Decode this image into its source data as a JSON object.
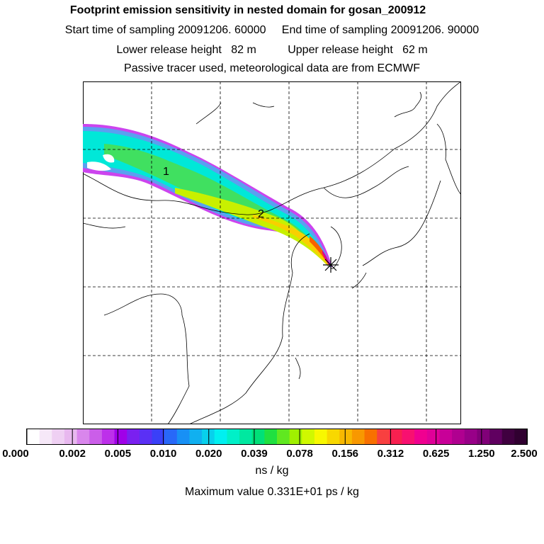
{
  "titles": {
    "line1": "Footprint emission sensitivity in nested domain for gosan_200912",
    "line2": "Start time of sampling 20091206. 60000     End time of sampling 20091206. 90000",
    "line3": "Lower release height   82 m          Upper release height   62 m",
    "line4": "Passive tracer used, meteorological data are from ECMWF"
  },
  "map": {
    "labels": [
      "2",
      "1"
    ],
    "release_marker": "star-marker"
  },
  "colorbar": {
    "colors": [
      "#ffffff",
      "#f6e8f8",
      "#efd0f3",
      "#e8b8ef",
      "#d986ec",
      "#cb5ee9",
      "#bd30ea",
      "#a000e8",
      "#7a20f0",
      "#5a30f5",
      "#3a40f8",
      "#2868f8",
      "#1890f5",
      "#10b0f0",
      "#08d0ec",
      "#00f0f0",
      "#00f0c8",
      "#00e8a0",
      "#00e078",
      "#20e040",
      "#60e820",
      "#a0f000",
      "#d0f800",
      "#f8f800",
      "#f8d800",
      "#f8b800",
      "#f89800",
      "#f87000",
      "#f84040",
      "#f82050",
      "#f81070",
      "#f00090",
      "#e00098",
      "#c80098",
      "#b00090",
      "#980088",
      "#800078",
      "#600060",
      "#400040",
      "#300030"
    ],
    "tick_labels": [
      "0.000",
      "0.002",
      "0.005",
      "0.010",
      "0.020",
      "0.039",
      "0.078",
      "0.156",
      "0.312",
      "0.625",
      "1.250",
      "2.500"
    ],
    "unit": "ns / kg"
  },
  "footer": {
    "maximum": "Maximum value  0.331E+01 ps / kg"
  }
}
